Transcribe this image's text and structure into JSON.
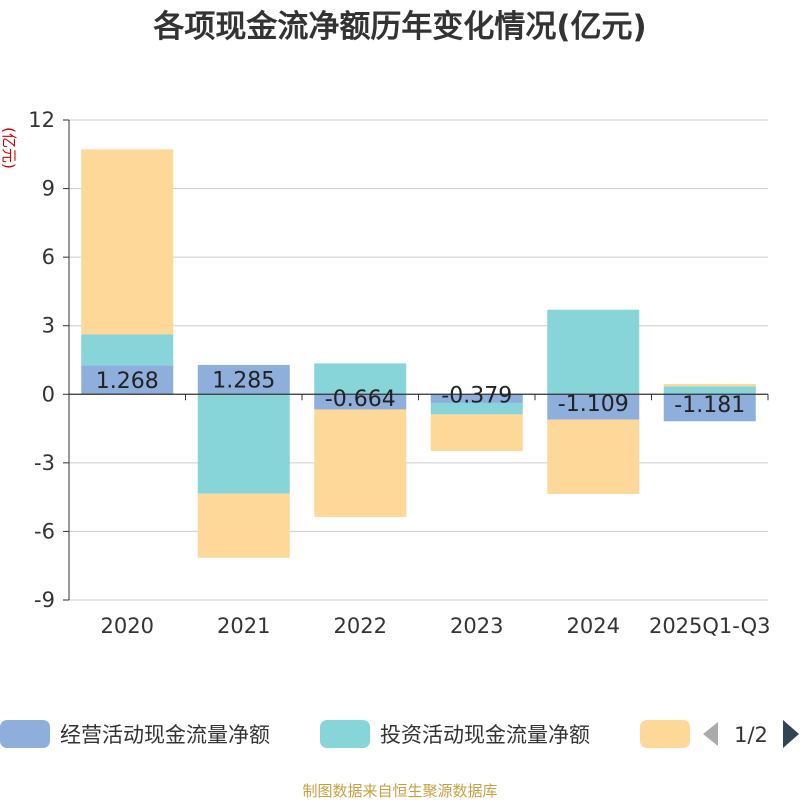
{
  "chart_data": {
    "type": "bar",
    "stacked": true,
    "title": "各项现金流净额历年变化情况(亿元)",
    "ylabel": "(亿元)",
    "xlabel": "",
    "ylim": [
      -9,
      12
    ],
    "yticks": [
      12,
      9,
      6,
      3,
      0,
      -3,
      -6,
      -9
    ],
    "categories": [
      "2020",
      "2021",
      "2022",
      "2023",
      "2024",
      "2025Q1-Q3"
    ],
    "series": [
      {
        "name": "经营活动现金流量净额",
        "color": "#8eaedc",
        "values": [
          1.268,
          1.285,
          -0.664,
          -0.379,
          -1.109,
          -1.181
        ],
        "labels": [
          "1.268",
          "1.285",
          "-0.664",
          "-0.379",
          "-1.109",
          "-1.181"
        ]
      },
      {
        "name": "投资活动现金流量净额",
        "color": "#87d4d9",
        "values": [
          1.35,
          -4.35,
          1.35,
          -0.5,
          3.7,
          0.35
        ]
      },
      {
        "name": "",
        "color": "#fdd899",
        "values": [
          8.1,
          -2.8,
          -4.7,
          -1.6,
          -3.25,
          0.1
        ]
      }
    ],
    "legend": {
      "position": "bottom",
      "page": "1/2"
    },
    "source": "制图数据来自恒生聚源数据库"
  }
}
